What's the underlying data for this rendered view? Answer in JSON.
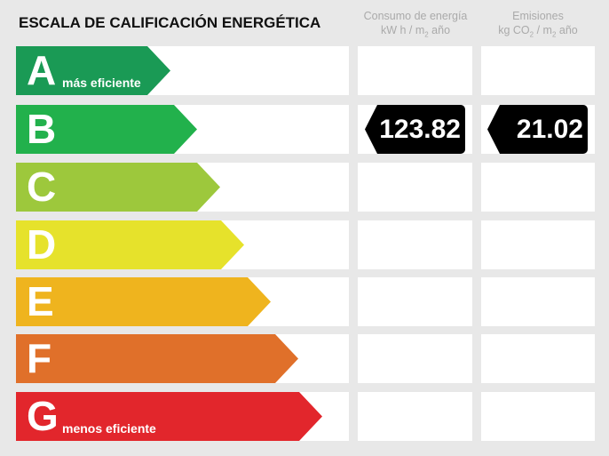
{
  "title": "ESCALA DE CALIFICACIÓN ENERGÉTICA",
  "columns": {
    "energy": {
      "line1": "Consumo de energía",
      "line2a": "kW h / m",
      "line2sub": "2",
      "line2b": " año"
    },
    "emissions": {
      "line1": "Emisiones",
      "line2a": "kg CO",
      "line2sub": "2",
      "line2b": " / m",
      "line2sub2": "2",
      "line2c": " año"
    }
  },
  "ratings": [
    {
      "letter": "A",
      "label": "más eficiente",
      "color": "#1a9a55"
    },
    {
      "letter": "B",
      "label": "",
      "color": "#22b14c"
    },
    {
      "letter": "C",
      "label": "",
      "color": "#9dc83c"
    },
    {
      "letter": "D",
      "label": "",
      "color": "#e6e22b"
    },
    {
      "letter": "E",
      "label": "",
      "color": "#efb41e"
    },
    {
      "letter": "F",
      "label": "",
      "color": "#e0702a"
    },
    {
      "letter": "G",
      "label": "menos eficiente",
      "color": "#e2262c"
    }
  ],
  "current": {
    "rating": "B",
    "energy_value": "123.82",
    "emissions_value": "21.02"
  }
}
